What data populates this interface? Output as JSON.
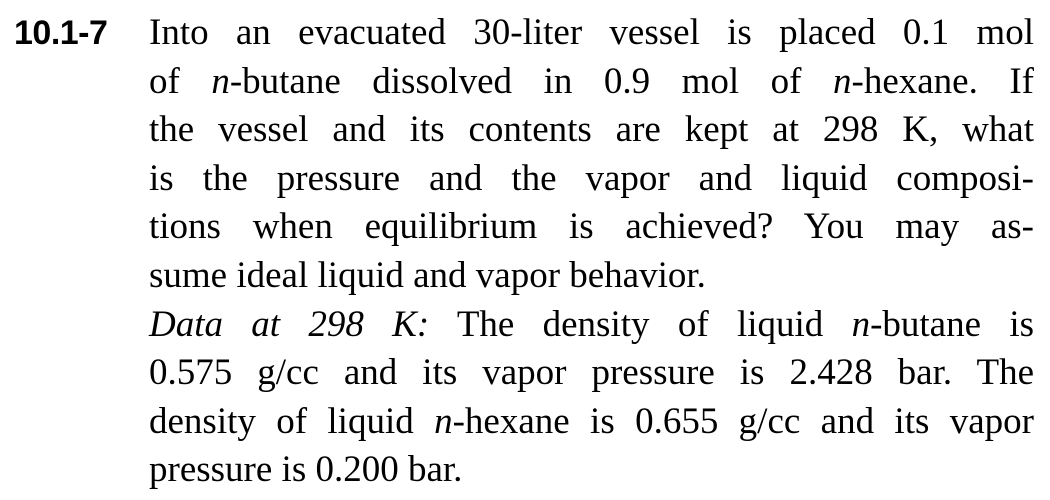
{
  "problem": {
    "number": "10.1-7",
    "statement_lines": [
      [
        "Into an evacuated 30-liter vessel is placed 0.1 mol"
      ],
      [
        "of ",
        {
          "i": "n"
        },
        "-butane dissolved in 0.9 mol of ",
        {
          "i": "n"
        },
        "-hexane. If"
      ],
      [
        "the vessel and its contents are kept at 298 K, what"
      ],
      [
        "is the pressure and the vapor and liquid composi-"
      ],
      [
        "tions when equilibrium is achieved? You may as-"
      ],
      [
        "sume ideal liquid and vapor behavior."
      ]
    ],
    "data_lines": [
      [
        {
          "i": "Data at 298 K:"
        },
        " The density of liquid ",
        {
          "i": "n"
        },
        "-butane is"
      ],
      [
        "0.575 g/cc and its vapor pressure is 2.428 bar. The"
      ],
      [
        "density of liquid ",
        {
          "i": "n"
        },
        "-hexane is 0.655 g/cc and its vapor"
      ],
      [
        "pressure is 0.200 bar."
      ]
    ]
  }
}
